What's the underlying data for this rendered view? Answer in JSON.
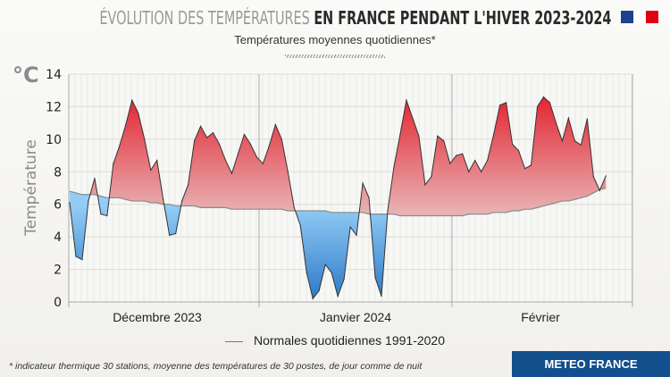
{
  "header": {
    "title_light": "ÉVOLUTION DES TEMPÉRATURES",
    "title_bold": "EN FRANCE PENDANT L'HIVER 2023-2024",
    "subtitle": "Températures moyennes quotidiennes*",
    "flag_colors": [
      "#1f3f8f",
      "#ffffff",
      "#e1000f"
    ]
  },
  "legend": {
    "normals_label": "Normales quotidiennes 1991-2020"
  },
  "footnote": "* indicateur thermique 30 stations, moyenne des températures de 30 postes, de jour comme de nuit",
  "brand": "METEO FRANCE",
  "chart_data": {
    "type": "area",
    "unit_label": "°C",
    "ylabel": "Température",
    "ylim": [
      0,
      14
    ],
    "yticks": [
      "0",
      "2",
      "4",
      "6",
      "8",
      "10",
      "12",
      "14"
    ],
    "month_labels": [
      "Décembre 2023",
      "Janvier 2024",
      "Février"
    ],
    "grid": true,
    "colors": {
      "above": "#e3222f",
      "below": "#3a86cf",
      "normals_line": "#888888",
      "temp_line": "#333333"
    },
    "x_start": "2023-12-01",
    "x_end": "2024-02-25",
    "series": [
      {
        "name": "Températures moyennes quotidiennes",
        "values": [
          6.1,
          2.8,
          2.6,
          6.2,
          7.6,
          5.4,
          5.3,
          8.5,
          9.6,
          10.9,
          12.4,
          11.6,
          10.0,
          8.1,
          8.7,
          6.3,
          4.1,
          4.2,
          6.2,
          7.2,
          9.9,
          10.8,
          10.1,
          10.4,
          9.7,
          8.7,
          7.9,
          9.1,
          10.3,
          9.7,
          8.9,
          8.5,
          9.6,
          10.9,
          10.0,
          8.0,
          5.8,
          4.7,
          1.8,
          0.2,
          0.7,
          2.3,
          1.8,
          0.35,
          1.4,
          4.6,
          4.1,
          7.3,
          6.4,
          1.5,
          0.35,
          5.6,
          8.3,
          10.3,
          12.4,
          11.3,
          10.2,
          7.2,
          7.7,
          10.2,
          9.9,
          8.5,
          9.0,
          9.1,
          8.0,
          8.7,
          8.0,
          8.7,
          10.3,
          12.1,
          12.25,
          9.7,
          9.3,
          8.2,
          8.4,
          12.0,
          12.6,
          12.25,
          11.0,
          9.9,
          11.3,
          9.9,
          9.65,
          11.25,
          7.7,
          6.85,
          7.75
        ]
      },
      {
        "name": "Normales quotidiennes 1991-2020",
        "values": [
          6.8,
          6.7,
          6.6,
          6.6,
          6.6,
          6.5,
          6.4,
          6.4,
          6.4,
          6.3,
          6.2,
          6.2,
          6.2,
          6.1,
          6.1,
          6.0,
          6.0,
          5.9,
          5.9,
          5.9,
          5.9,
          5.8,
          5.8,
          5.8,
          5.8,
          5.8,
          5.7,
          5.7,
          5.7,
          5.7,
          5.7,
          5.7,
          5.7,
          5.7,
          5.7,
          5.6,
          5.6,
          5.6,
          5.6,
          5.6,
          5.6,
          5.6,
          5.5,
          5.5,
          5.5,
          5.5,
          5.5,
          5.5,
          5.4,
          5.4,
          5.4,
          5.4,
          5.4,
          5.3,
          5.3,
          5.3,
          5.3,
          5.3,
          5.3,
          5.3,
          5.3,
          5.3,
          5.3,
          5.3,
          5.4,
          5.4,
          5.4,
          5.4,
          5.5,
          5.5,
          5.5,
          5.6,
          5.6,
          5.7,
          5.7,
          5.8,
          5.9,
          6.0,
          6.1,
          6.2,
          6.2,
          6.3,
          6.4,
          6.5,
          6.7,
          6.9,
          7.0
        ]
      }
    ]
  }
}
